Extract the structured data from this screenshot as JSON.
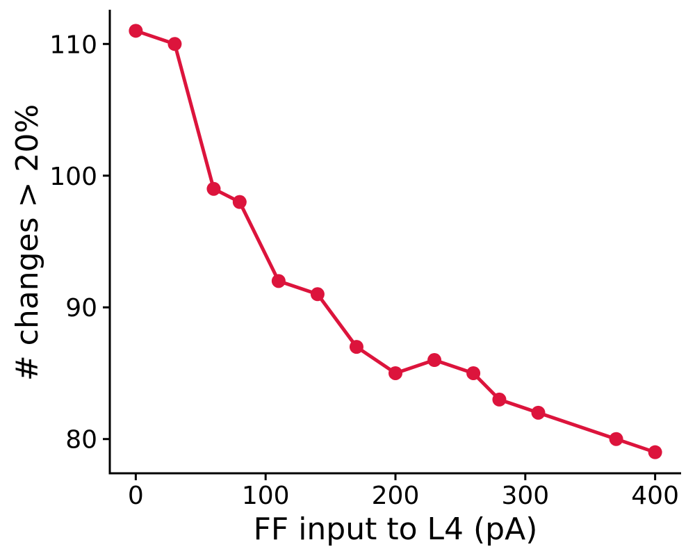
{
  "chart_data": {
    "type": "line",
    "title": "",
    "xlabel": "FF input to L4 (pA)",
    "ylabel": "# changes > 20%",
    "xlim": [
      -20,
      420
    ],
    "ylim": [
      77.4,
      112.6
    ],
    "xticks": [
      0,
      100,
      200,
      300,
      400
    ],
    "yticks": [
      80,
      90,
      100,
      110
    ],
    "xtick_labels": [
      "0",
      "100",
      "200",
      "300",
      "400"
    ],
    "ytick_labels": [
      "80",
      "90",
      "100",
      "110"
    ],
    "grid": false,
    "legend": "none",
    "series": [
      {
        "color": "#dc143c",
        "marker": "circle",
        "x": [
          0,
          30,
          60,
          80,
          110,
          140,
          170,
          200,
          230,
          260,
          280,
          310,
          370,
          400
        ],
        "y": [
          111,
          110,
          99,
          98,
          92,
          91,
          87,
          85,
          86,
          85,
          83,
          82,
          80,
          79
        ]
      }
    ]
  }
}
